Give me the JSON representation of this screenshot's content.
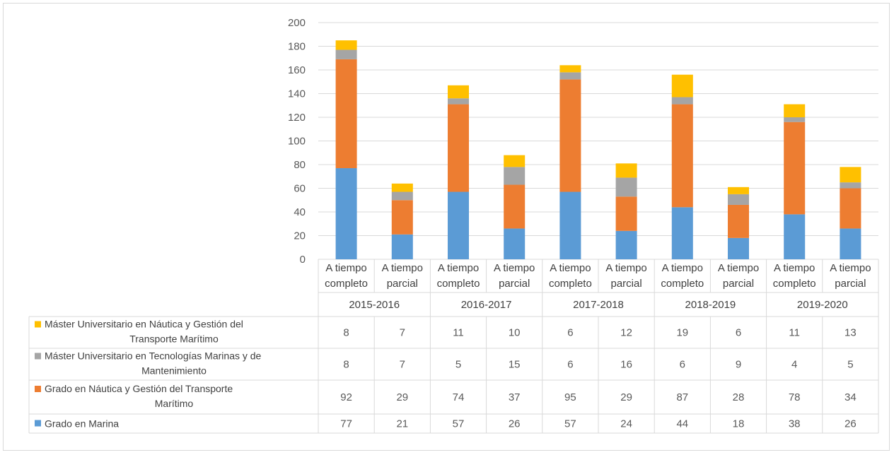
{
  "chart_data": {
    "type": "bar",
    "stacked": true,
    "title": "",
    "xlabel": "",
    "ylabel": "",
    "ylim": [
      0,
      200
    ],
    "y_ticks": [
      0,
      20,
      40,
      60,
      80,
      100,
      120,
      140,
      160,
      180,
      200
    ],
    "grid": true,
    "legend_placement": "data-table",
    "groups": [
      "2015-2016",
      "2016-2017",
      "2017-2018",
      "2018-2019",
      "2019-2020"
    ],
    "subcategories": [
      [
        "A tiempo",
        "completo"
      ],
      [
        "A tiempo",
        "parcial"
      ]
    ],
    "series": [
      {
        "name": "Grado en Marina",
        "color": "#5b9bd5",
        "values": [
          77,
          21,
          57,
          26,
          57,
          24,
          44,
          18,
          38,
          26
        ]
      },
      {
        "name": "Grado en Náutica y Gestión del Transporte Marítimo",
        "label_lines": [
          "Grado en Náutica y Gestión del Transporte",
          "Marítimo"
        ],
        "color": "#ed7d31",
        "values": [
          92,
          29,
          74,
          37,
          95,
          29,
          87,
          28,
          78,
          34
        ]
      },
      {
        "name": "Máster Universitario en Tecnologías Marinas y de Mantenimiento",
        "label_lines": [
          "Máster Universitario en Tecnologías Marinas y de",
          "Mantenimiento"
        ],
        "color": "#a5a5a5",
        "values": [
          8,
          7,
          5,
          15,
          6,
          16,
          6,
          9,
          4,
          5
        ]
      },
      {
        "name": "Máster Universitario en Náutica y Gestión del Transporte Marítimo",
        "label_lines": [
          "Máster Universitario en Náutica y Gestión del",
          "Transporte Marítimo"
        ],
        "color": "#ffc000",
        "values": [
          8,
          7,
          11,
          10,
          6,
          12,
          19,
          6,
          11,
          13
        ]
      }
    ]
  }
}
